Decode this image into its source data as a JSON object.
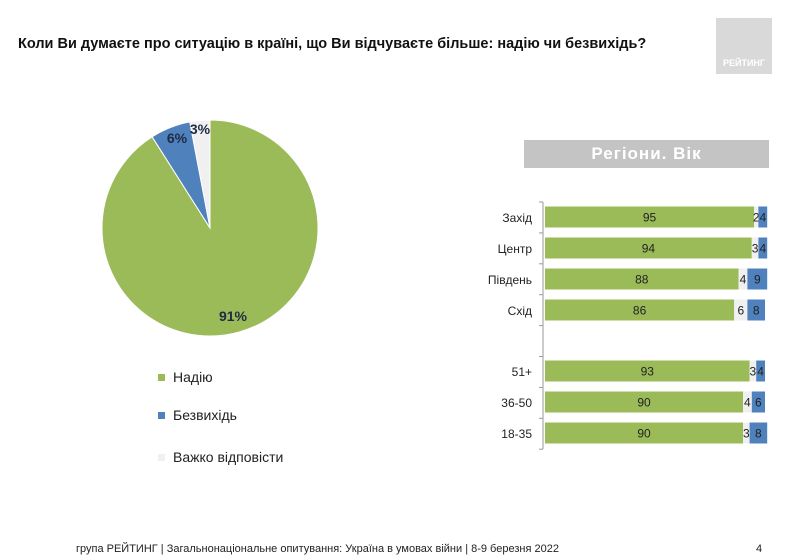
{
  "title": "Коли Ви думаєте про ситуацію в країні, що Ви відчуваєте більше: надію чи безвихідь?",
  "logo_text": "РЕЙТИНГ",
  "section_header": "Регіони. Вік",
  "footer": "група РЕЙТИНГ | Загальнонаціональне опитування: Україна в умовах війни | 8-9 березня 2022",
  "page_number": "4",
  "colors": {
    "hope": "#9bbb59",
    "despair": "#4f81bd",
    "hard": "#f0f0f0"
  },
  "chart_data": [
    {
      "type": "pie",
      "legend_position": "bottom-left",
      "slices": [
        {
          "name": "Надію",
          "value": 91,
          "label": "91%"
        },
        {
          "name": "Безвихідь",
          "value": 6,
          "label": "6%"
        },
        {
          "name": "Важко відповісти",
          "value": 3,
          "label": "3%"
        }
      ]
    },
    {
      "type": "bar",
      "orientation": "horizontal",
      "stacked": true,
      "categories": [
        "Захід",
        "Центр",
        "Південь",
        "Схід",
        "",
        "51+",
        "36-50",
        "18-35"
      ],
      "series": [
        {
          "name": "Надію",
          "values": [
            95,
            94,
            88,
            86,
            null,
            93,
            90,
            90
          ]
        },
        {
          "name": "Важко відповісти",
          "values": [
            2,
            3,
            4,
            6,
            null,
            3,
            4,
            3
          ]
        },
        {
          "name": "Безвихідь",
          "values": [
            4,
            4,
            9,
            8,
            null,
            4,
            6,
            8
          ]
        }
      ]
    }
  ]
}
